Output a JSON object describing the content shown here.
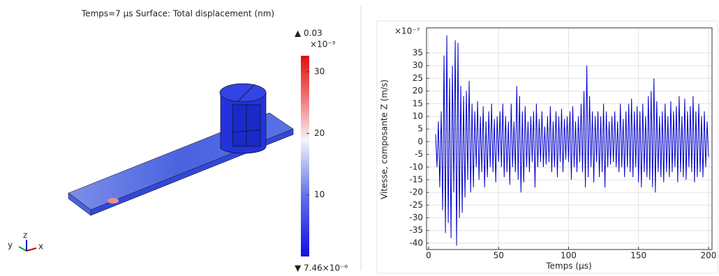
{
  "surface_plot": {
    "title": "Temps=7 µs   Surface: Total displacement (nm)",
    "max_label": "▲ 0.03",
    "multiplier": "×10⁻³",
    "min_label": "▼ 7.46×10⁻⁶",
    "colorbar_lim": [
      0.00746,
      32.6
    ],
    "colorbar_ticks": [
      10,
      20,
      30
    ],
    "axes": [
      "x",
      "y",
      "z"
    ]
  },
  "chart_data": {
    "type": "line",
    "y_label": "Vitesse, composante Z (m/s)",
    "x_label": "Temps (µs)",
    "y_multiplier": "×10⁻⁷",
    "color": "#0000cc",
    "grid": true,
    "xlim": [
      -1.5,
      202.5
    ],
    "ylim": [
      -42.5,
      44.9
    ],
    "xticks": [
      0,
      50,
      100,
      150,
      200
    ],
    "yticks": [
      -40,
      -35,
      -30,
      -25,
      -20,
      -15,
      -10,
      -5,
      0,
      5,
      10,
      15,
      20,
      25,
      30,
      35
    ],
    "x": [
      5,
      6,
      7,
      8,
      9,
      10,
      11,
      12,
      13,
      14,
      15,
      16,
      17,
      18,
      19,
      20,
      21,
      22,
      23,
      24,
      25,
      26,
      27,
      28,
      29,
      30,
      31,
      32,
      33,
      34,
      35,
      36,
      37,
      38,
      39,
      40,
      41,
      42,
      43,
      44,
      45,
      46,
      47,
      48,
      49,
      50,
      51,
      52,
      53,
      54,
      55,
      56,
      57,
      58,
      59,
      60,
      61,
      62,
      63,
      64,
      65,
      66,
      67,
      68,
      69,
      70,
      71,
      72,
      73,
      74,
      75,
      76,
      77,
      78,
      79,
      80,
      81,
      82,
      83,
      84,
      85,
      86,
      87,
      88,
      89,
      90,
      91,
      92,
      93,
      94,
      95,
      96,
      97,
      98,
      99,
      100,
      101,
      102,
      103,
      104,
      105,
      106,
      107,
      108,
      109,
      110,
      111,
      112,
      113,
      114,
      115,
      116,
      117,
      118,
      119,
      120,
      121,
      122,
      123,
      124,
      125,
      126,
      127,
      128,
      129,
      130,
      131,
      132,
      133,
      134,
      135,
      136,
      137,
      138,
      139,
      140,
      141,
      142,
      143,
      144,
      145,
      146,
      147,
      148,
      149,
      150,
      151,
      152,
      153,
      154,
      155,
      156,
      157,
      158,
      159,
      160,
      161,
      162,
      163,
      164,
      165,
      166,
      167,
      168,
      169,
      170,
      171,
      172,
      173,
      174,
      175,
      176,
      177,
      178,
      179,
      180,
      181,
      182,
      183,
      184,
      185,
      186,
      187,
      188,
      189,
      190,
      191,
      192,
      193,
      194,
      195,
      196,
      197,
      198,
      199,
      200
    ],
    "values": [
      3,
      -10,
      8,
      -18,
      12,
      -27,
      34,
      -36,
      42,
      -32,
      25,
      -38,
      30,
      -20,
      40,
      -41,
      39,
      -30,
      22,
      -28,
      18,
      -22,
      20,
      -15,
      24,
      -20,
      15,
      -18,
      12,
      -10,
      16,
      -15,
      10,
      -12,
      14,
      -18,
      8,
      -14,
      12,
      -10,
      15,
      -12,
      9,
      -16,
      10,
      -8,
      12,
      -10,
      15,
      -14,
      10,
      -12,
      8,
      -17,
      15,
      -10,
      8,
      -12,
      22,
      -15,
      18,
      -20,
      12,
      -16,
      14,
      -10,
      8,
      -12,
      10,
      -8,
      12,
      -18,
      15,
      -10,
      9,
      -8,
      12,
      -10,
      6,
      -9,
      10,
      -8,
      14,
      -12,
      8,
      -10,
      12,
      -14,
      10,
      -8,
      13,
      -12,
      9,
      -7,
      10,
      -8,
      12,
      -15,
      14,
      -10,
      8,
      -12,
      10,
      -8,
      15,
      -12,
      20,
      -18,
      30,
      -14,
      18,
      -10,
      12,
      -16,
      10,
      -8,
      12,
      -14,
      10,
      -12,
      15,
      -18,
      12,
      -10,
      8,
      -9,
      10,
      -8,
      12,
      -10,
      8,
      -12,
      15,
      -10,
      9,
      -14,
      12,
      -10,
      15,
      -12,
      17,
      -14,
      12,
      -10,
      14,
      -16,
      12,
      -18,
      15,
      -12,
      10,
      -14,
      18,
      -15,
      20,
      -18,
      25,
      -20,
      16,
      -12,
      10,
      -14,
      12,
      -16,
      15,
      -12,
      10,
      -14,
      16,
      -12,
      12,
      -10,
      14,
      -16,
      18,
      -12,
      10,
      -14,
      17,
      -15,
      12,
      -10,
      14,
      -12,
      18,
      -16,
      12,
      -14,
      15,
      -12,
      10,
      -14,
      12,
      -10,
      8,
      -6
    ]
  }
}
